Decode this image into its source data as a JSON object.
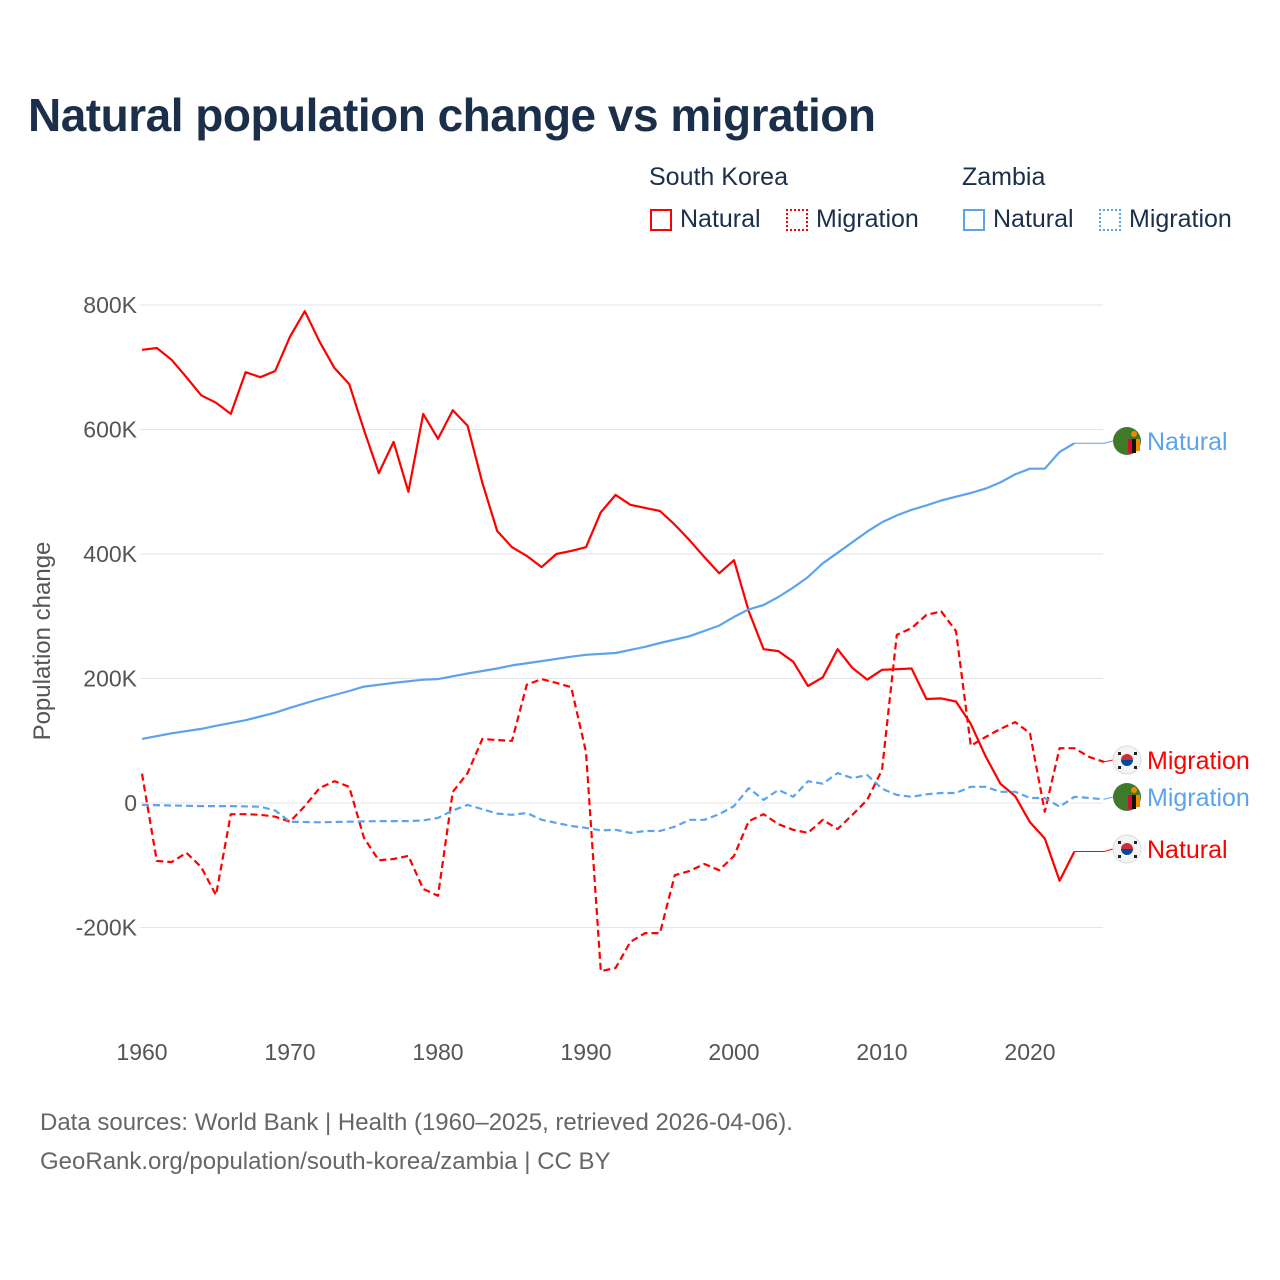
{
  "title": "Natural population change vs migration",
  "legend": {
    "groups": [
      {
        "name": "South Korea",
        "items": [
          "Natural",
          "Migration"
        ],
        "color": "#ff0000"
      },
      {
        "name": "Zambia",
        "items": [
          "Natural",
          "Migration"
        ],
        "color": "#5ba4ec"
      }
    ]
  },
  "footer": {
    "line1": "Data sources: World Bank | Health (1960–2025, retrieved 2026-04-06).",
    "line2": "GeoRank.org/population/south-korea/zambia | CC BY"
  },
  "chart_data": {
    "type": "line",
    "title": "Natural population change vs migration",
    "xlabel": "",
    "ylabel": "Population change",
    "xlim": [
      1960,
      2025
    ],
    "ylim": [
      -300,
      850
    ],
    "x_ticks": [
      1960,
      1970,
      1980,
      1990,
      2000,
      2010,
      2020
    ],
    "x_tick_labels": [
      "1960",
      "1970",
      "1980",
      "1990",
      "2000",
      "2010",
      "2020"
    ],
    "y_ticks": [
      -200,
      0,
      200,
      400,
      600,
      800
    ],
    "y_tick_labels": [
      "-200K",
      "0",
      "200K",
      "400K",
      "600K",
      "800K"
    ],
    "units": "thousands",
    "grid": true,
    "series": [
      {
        "name": "South Korea Natural",
        "label": "Natural",
        "color": "#ff0000",
        "dash": false,
        "flag": "south-korea",
        "x": [
          1960,
          1961,
          1962,
          1963,
          1964,
          1965,
          1966,
          1967,
          1968,
          1969,
          1970,
          1971,
          1972,
          1973,
          1974,
          1975,
          1976,
          1977,
          1978,
          1979,
          1980,
          1981,
          1982,
          1983,
          1984,
          1985,
          1986,
          1987,
          1988,
          1989,
          1990,
          1991,
          1992,
          1993,
          1994,
          1995,
          1996,
          1997,
          1998,
          1999,
          2000,
          2001,
          2002,
          2003,
          2004,
          2005,
          2006,
          2007,
          2008,
          2009,
          2010,
          2011,
          2012,
          2013,
          2014,
          2015,
          2016,
          2017,
          2018,
          2019,
          2020,
          2021,
          2022,
          2023
        ],
        "values": [
          728,
          731,
          712,
          684,
          655,
          643,
          625,
          692,
          684,
          694,
          749,
          790,
          741,
          699,
          673,
          599,
          530,
          580,
          500,
          625,
          585,
          631,
          606,
          514,
          437,
          411,
          397,
          379,
          400,
          405,
          411,
          467,
          495,
          479,
          474,
          469,
          447,
          422,
          395,
          369,
          390,
          308,
          247,
          244,
          227,
          188,
          202,
          247,
          217,
          198,
          214,
          215,
          216,
          167,
          168,
          163,
          127,
          75,
          31,
          11,
          -31,
          -57,
          -125,
          -78
        ]
      },
      {
        "name": "South Korea Migration",
        "label": "Migration",
        "color": "#ff0000",
        "dash": true,
        "flag": "south-korea",
        "x": [
          1960,
          1961,
          1962,
          1963,
          1964,
          1965,
          1966,
          1967,
          1968,
          1969,
          1970,
          1971,
          1972,
          1973,
          1974,
          1975,
          1976,
          1977,
          1978,
          1979,
          1980,
          1981,
          1982,
          1983,
          1984,
          1985,
          1986,
          1987,
          1988,
          1989,
          1990,
          1991,
          1992,
          1993,
          1994,
          1995,
          1996,
          1997,
          1998,
          1999,
          2000,
          2001,
          2002,
          2003,
          2004,
          2005,
          2006,
          2007,
          2008,
          2009,
          2010,
          2011,
          2012,
          2013,
          2014,
          2015,
          2016,
          2017,
          2018,
          2019,
          2020,
          2021,
          2022,
          2023,
          2024,
          2025
        ],
        "values": [
          47,
          -93,
          -95,
          -80,
          -103,
          -148,
          -18,
          -18,
          -19,
          -22,
          -30,
          -5,
          24,
          35,
          26,
          -56,
          -92,
          -90,
          -85,
          -138,
          -149,
          18,
          48,
          103,
          101,
          100,
          190,
          199,
          193,
          186,
          82,
          -270,
          -265,
          -223,
          -209,
          -209,
          -116,
          -109,
          -98,
          -108,
          -85,
          -29,
          -18,
          -34,
          -43,
          -48,
          -27,
          -42,
          -19,
          5,
          53,
          270,
          281,
          302,
          308,
          276,
          92,
          106,
          119,
          130,
          112,
          -14,
          88,
          88,
          74,
          66
        ]
      },
      {
        "name": "Zambia Natural",
        "label": "Natural",
        "color": "#5ba4ec",
        "dash": false,
        "flag": "zambia",
        "x": [
          1960,
          1962,
          1964,
          1965,
          1967,
          1969,
          1970,
          1972,
          1974,
          1975,
          1977,
          1979,
          1980,
          1982,
          1984,
          1985,
          1987,
          1989,
          1990,
          1992,
          1994,
          1995,
          1997,
          1999,
          2000,
          2001,
          2002,
          2003,
          2004,
          2005,
          2006,
          2007,
          2008,
          2009,
          2010,
          2011,
          2012,
          2013,
          2014,
          2015,
          2016,
          2017,
          2018,
          2019,
          2020,
          2021,
          2022,
          2023
        ],
        "values": [
          103,
          112,
          119,
          124,
          133,
          145,
          153,
          167,
          180,
          187,
          193,
          198,
          199,
          208,
          216,
          221,
          228,
          235,
          238,
          241,
          251,
          257,
          268,
          285,
          299,
          311,
          318,
          331,
          346,
          363,
          385,
          402,
          419,
          436,
          451,
          462,
          471,
          478,
          486,
          492,
          498,
          505,
          515,
          528,
          537,
          537,
          564,
          578
        ]
      },
      {
        "name": "Zambia Migration",
        "label": "Migration",
        "color": "#5ba4ec",
        "dash": true,
        "flag": "zambia",
        "x": [
          1960,
          1962,
          1964,
          1966,
          1968,
          1969,
          1970,
          1972,
          1974,
          1976,
          1978,
          1979,
          1980,
          1981,
          1982,
          1983,
          1984,
          1985,
          1986,
          1987,
          1988,
          1989,
          1990,
          1991,
          1992,
          1993,
          1994,
          1995,
          1996,
          1997,
          1998,
          1999,
          2000,
          2001,
          2002,
          2003,
          2004,
          2005,
          2006,
          2007,
          2008,
          2009,
          2010,
          2011,
          2012,
          2013,
          2014,
          2015,
          2016,
          2017,
          2018,
          2019,
          2020,
          2021,
          2022,
          2023,
          2024,
          2025
        ],
        "values": [
          -3,
          -4,
          -5,
          -5,
          -6,
          -12,
          -30,
          -31,
          -30,
          -29,
          -29,
          -28,
          -24,
          -12,
          -3,
          -10,
          -17,
          -19,
          -16,
          -27,
          -32,
          -37,
          -40,
          -44,
          -43,
          -48,
          -45,
          -45,
          -38,
          -27,
          -27,
          -18,
          -5,
          24,
          5,
          21,
          10,
          35,
          31,
          48,
          40,
          45,
          23,
          13,
          10,
          14,
          16,
          16,
          26,
          26,
          18,
          18,
          8,
          8,
          -6,
          10,
          8,
          6
        ]
      }
    ]
  }
}
